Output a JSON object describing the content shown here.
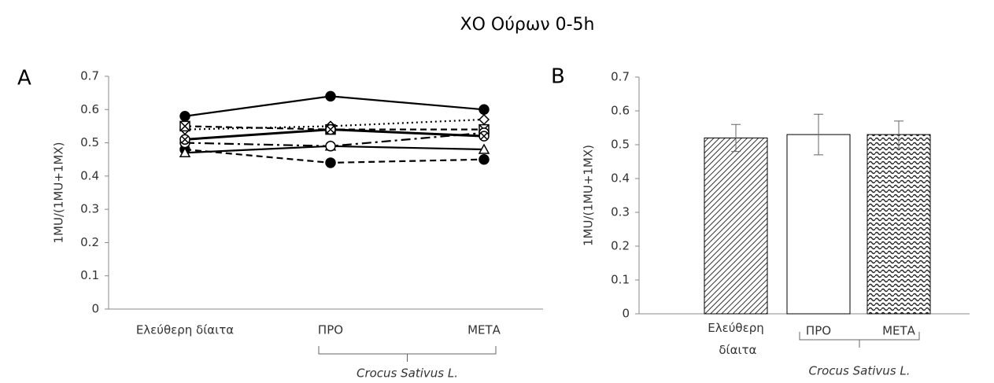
{
  "title": "ΧΟ Ούρων 0-5h",
  "chart_data": [
    {
      "type": "line",
      "panel_label": "A",
      "y_label": "1MU/(1MU+1MX)",
      "categories": [
        "Ελεύθερη δίαιτα",
        "ΠΡΟ",
        "ΜΕΤΑ"
      ],
      "bracket_label": "Crocus Sativus L.",
      "ylim": [
        0,
        0.7
      ],
      "yticks": [
        0,
        0.1,
        0.2,
        0.3,
        0.4,
        0.5,
        0.6,
        0.7
      ],
      "series": [
        {
          "color": "#000000",
          "dash": "solid",
          "marker": "circle-filled",
          "values": [
            0.58,
            0.64,
            0.6
          ]
        },
        {
          "color": "#000000",
          "dash": "dashed",
          "marker": "circle-filled",
          "values": [
            0.48,
            0.44,
            0.45
          ]
        },
        {
          "color": "#000000",
          "dash": "solid",
          "marker": "triangle",
          "values": [
            0.47,
            0.49,
            0.48
          ]
        },
        {
          "color": "#000000",
          "dash": "dotted",
          "marker": "diamond",
          "values": [
            0.54,
            0.55,
            0.57
          ]
        },
        {
          "color": "#000000",
          "dash": "dashed",
          "marker": "square-x",
          "values": [
            0.55,
            0.54,
            0.54
          ]
        },
        {
          "color": "#000000",
          "dash": "dash-dot",
          "marker": "circle",
          "values": [
            0.5,
            0.49,
            0.53
          ]
        },
        {
          "color": "#000000",
          "dash": "solid-thick",
          "marker": "circle-x",
          "values": [
            0.51,
            0.54,
            0.52
          ]
        }
      ]
    },
    {
      "type": "bar",
      "panel_label": "B",
      "y_label": "1MU/(1MU+1MX)",
      "categories": [
        "Ελεύθερη δίαιτα",
        "ΠΡΟ",
        "ΜΕΤΑ"
      ],
      "bracket_label": "Crocus Sativus L.",
      "values": [
        0.52,
        0.53,
        0.53
      ],
      "errors": [
        0.04,
        0.06,
        0.04
      ],
      "patterns": [
        "diagonal-hatch",
        "none",
        "wave"
      ],
      "color": "#000000",
      "ylim": [
        0,
        0.7
      ],
      "yticks": [
        0,
        0.1,
        0.2,
        0.3,
        0.4,
        0.5,
        0.6,
        0.7
      ]
    }
  ]
}
